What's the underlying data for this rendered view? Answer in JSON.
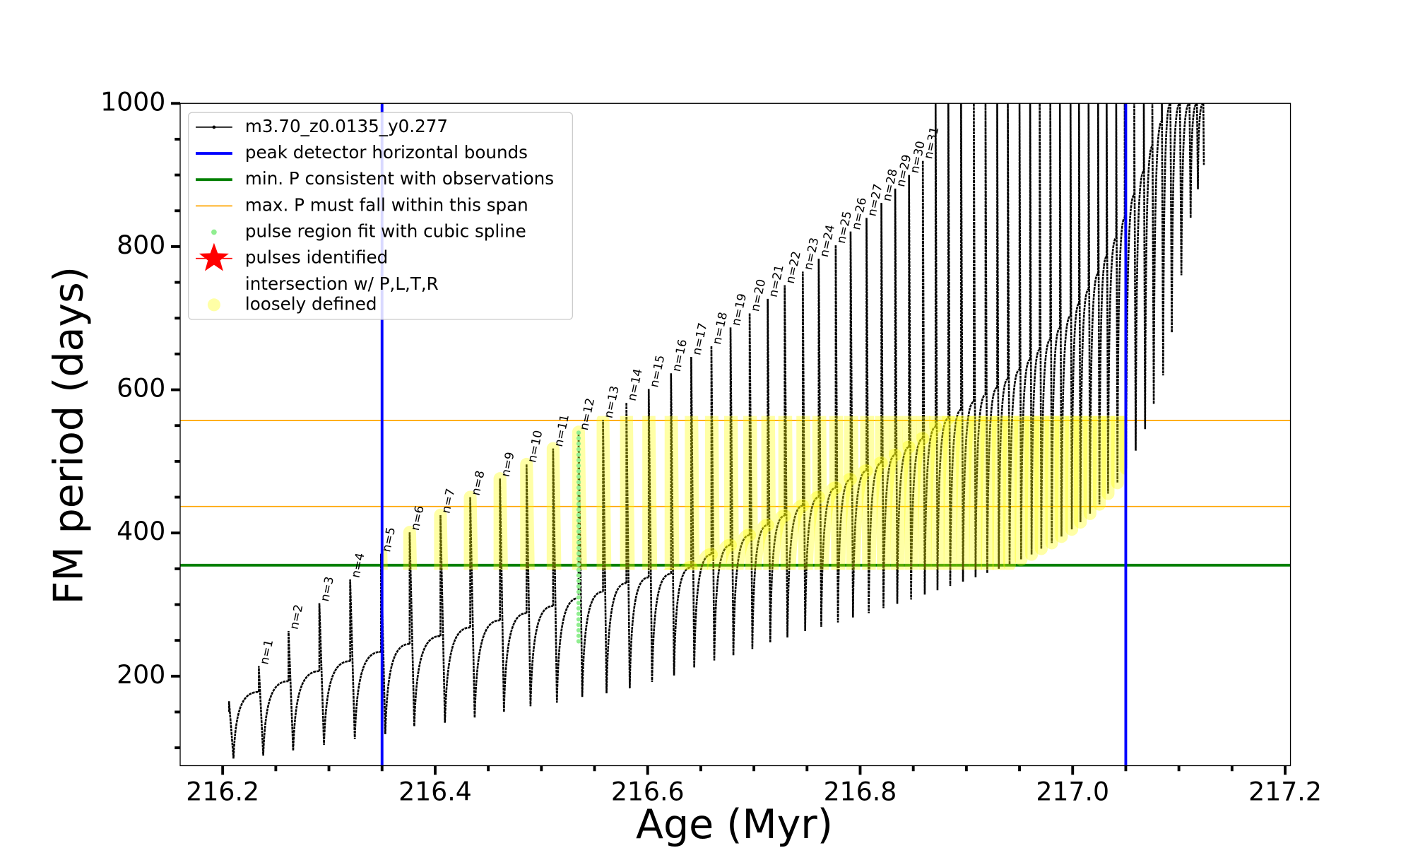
{
  "chart_data": {
    "type": "pulse-line",
    "xlabel": "Age (Myr)",
    "ylabel": "FM period (days)",
    "xlim": [
      216.16,
      217.205
    ],
    "ylim": [
      75,
      1000
    ],
    "xticks": [
      216.2,
      216.4,
      216.6,
      216.8,
      {
        "value": 217.0,
        "label": "217.0"
      },
      217.2
    ],
    "xminorticks": [
      216.25,
      216.3,
      216.35,
      216.45,
      216.5,
      216.55,
      216.65,
      216.7,
      216.75,
      216.85,
      216.9,
      216.95,
      217.05,
      217.1,
      217.15
    ],
    "yticks": [
      200,
      400,
      600,
      800,
      1000
    ],
    "yminorticks": [
      100,
      150,
      250,
      300,
      350,
      450,
      500,
      550,
      650,
      700,
      750,
      850,
      900,
      950
    ],
    "legend": "upper left",
    "series": [
      {
        "name": "m3.70_z0.0135_y0.277",
        "color": "#000000",
        "linewidth": 2,
        "x": [
          216.206,
          216.234,
          216.262,
          216.291,
          216.32,
          216.349,
          216.376,
          216.405,
          216.433,
          216.461,
          216.486,
          216.511,
          216.535,
          216.558,
          216.58,
          216.601,
          216.622,
          216.641,
          216.66,
          216.678,
          216.696,
          216.713,
          216.729,
          216.746,
          216.761,
          216.777,
          216.791,
          216.806,
          216.82,
          216.833,
          216.846,
          216.859,
          216.871,
          216.883,
          216.895,
          216.907,
          216.918,
          216.929,
          216.939,
          216.95,
          216.96,
          216.969,
          216.979,
          216.988,
          216.998,
          217.006,
          217.015,
          217.024,
          217.032,
          217.041,
          217.049,
          217.058,
          217.067,
          217.075,
          217.084,
          217.092,
          217.101,
          217.11,
          217.117,
          217.123
        ],
        "base": [
          150,
          178,
          193,
          207,
          221,
          234,
          245,
          256,
          268,
          278,
          288,
          298,
          309,
          318,
          330,
          338,
          343,
          352,
          370,
          383,
          397,
          411,
          424,
          438,
          450,
          463,
          475,
          487,
          498,
          509,
          520,
          532,
          548,
          560,
          572,
          583,
          593,
          603,
          615,
          628,
          642,
          656,
          670,
          686,
          703,
          720,
          740,
          762,
          786,
          812,
          840,
          872,
          905,
          940,
          975,
          1000,
          1000,
          1000,
          1000,
          1000
        ],
        "peak": [
          165,
          214,
          263,
          302,
          335,
          371,
          401,
          425,
          450,
          476,
          496,
          518,
          541,
          558,
          582,
          601,
          623,
          646,
          661,
          687,
          707,
          727,
          746,
          765,
          783,
          802,
          821,
          840,
          861,
          881,
          900,
          920,
          1000,
          1000,
          1000,
          1000,
          1000,
          1000,
          1000,
          1000,
          1000,
          1000,
          1000,
          1000,
          1000,
          1000,
          1000,
          1000,
          1000,
          1000,
          1000,
          1000,
          1000,
          1000,
          1000,
          1000,
          1000,
          1000,
          1000,
          1000
        ],
        "trough": [
          85,
          89,
          96,
          104,
          112,
          119,
          130,
          135,
          142,
          150,
          158,
          163,
          171,
          176,
          183,
          192,
          201,
          212,
          222,
          229,
          238,
          247,
          254,
          263,
          269,
          275,
          282,
          288,
          295,
          301,
          307,
          314,
          320,
          326,
          332,
          338,
          344,
          350,
          356,
          363,
          370,
          378,
          386,
          395,
          405,
          415,
          427,
          440,
          455,
          470,
          490,
          515,
          545,
          580,
          620,
          680,
          760,
          840,
          880,
          914
        ],
        "labels": [
          null,
          "n=1",
          "n=2",
          "n=3",
          "n=4",
          "n=5",
          "n=6",
          "n=7",
          "n=8",
          "n=9",
          "n=10",
          "n=11",
          "n=12",
          "n=13",
          "n=14",
          "n=15",
          "n=16",
          "n=17",
          "n=18",
          "n=19",
          "n=20",
          "n=21",
          "n=22",
          "n=23",
          "n=24",
          "n=25",
          "n=26",
          "n=27",
          "n=28",
          "n=29",
          "n=30",
          "n=31",
          null,
          null,
          null,
          null,
          null,
          null,
          null,
          null,
          null,
          null,
          null,
          null,
          null,
          null,
          null,
          null,
          null,
          null,
          null,
          null,
          null,
          null,
          null,
          null,
          null,
          null,
          null,
          null
        ]
      },
      {
        "name": "peak detector horizontal bounds",
        "color": "#0000ff",
        "kind": "vline",
        "linewidth": 3,
        "x": [
          216.35,
          217.05
        ]
      },
      {
        "name": "min. P consistent with observations",
        "color": "#008000",
        "kind": "hline",
        "linewidth": 3,
        "values": [
          355
        ]
      },
      {
        "name": "max. P must fall within this span",
        "color": "#ffa500",
        "kind": "hline",
        "linewidth": 1.3,
        "values": [
          437,
          557
        ]
      },
      {
        "name": "pulse region fit with cubic spline",
        "color": "#90ee90",
        "kind": "spline",
        "x": [
          216.535
        ],
        "range": [
          245,
          540
        ]
      },
      {
        "name": "pulses identified",
        "color": "#ff0000",
        "kind": "star"
      },
      {
        "name": [
          "intersection w/ P,L,T,R",
          "loosely defined"
        ],
        "color": "#ffff00",
        "kind": "band"
      }
    ]
  }
}
